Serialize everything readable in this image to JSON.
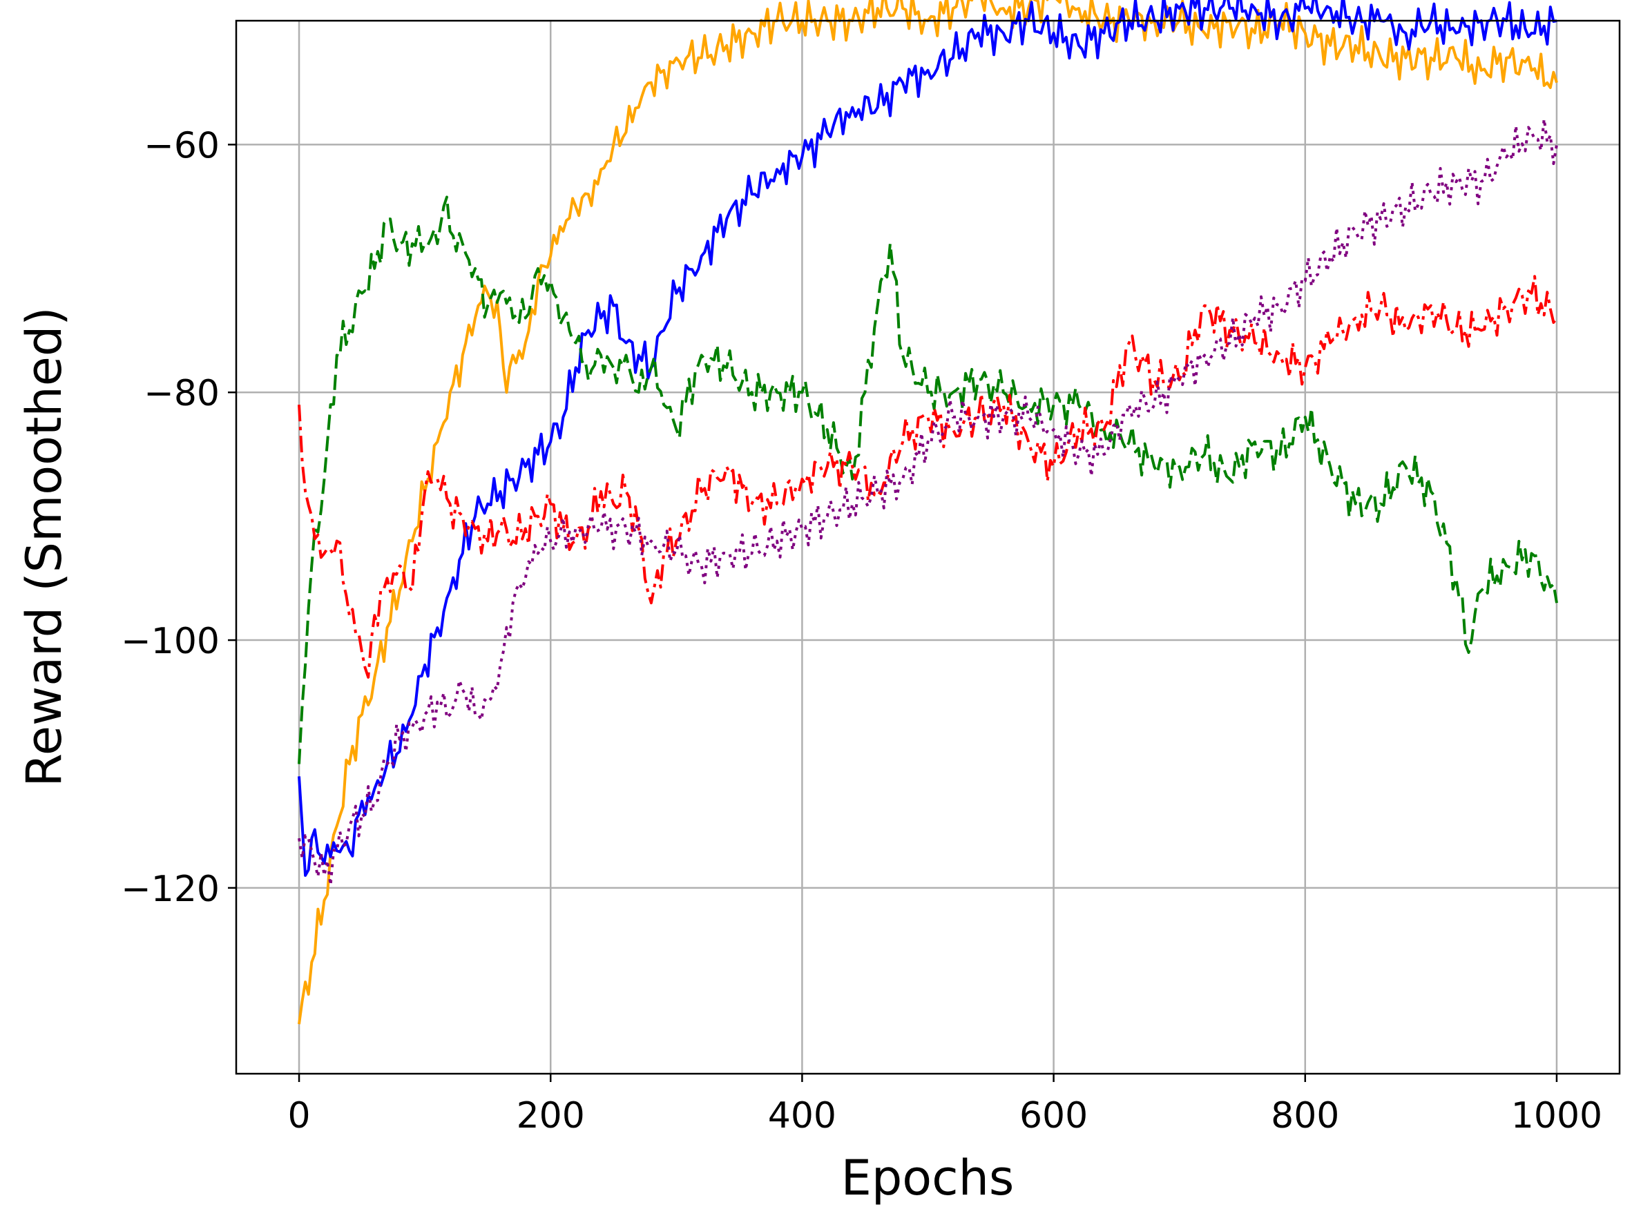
{
  "chart_data": {
    "type": "line",
    "title": "",
    "xlabel": "Epochs",
    "ylabel": "Reward (Smoothed)",
    "xlim": [
      -50,
      1050
    ],
    "ylim": [
      -135,
      -50
    ],
    "x_ticks": [
      0,
      200,
      400,
      600,
      800,
      1000
    ],
    "y_ticks": [
      -120,
      -100,
      -80,
      -60
    ],
    "x_tick_labels": [
      "0",
      "200",
      "400",
      "600",
      "800",
      "1000"
    ],
    "y_tick_labels": [
      "−120",
      "−100",
      "−80",
      "−60"
    ],
    "grid": true,
    "legend": "none",
    "series": [
      {
        "color": "#ffa500",
        "style": "solid",
        "x": [
          0,
          10,
          20,
          30,
          40,
          50,
          60,
          70,
          80,
          90,
          100,
          110,
          120,
          130,
          140,
          150,
          160,
          165,
          170,
          180,
          190,
          200,
          210,
          220,
          230,
          240,
          250,
          260,
          270,
          280,
          290,
          300,
          320,
          340,
          360,
          380,
          400,
          420,
          440,
          460,
          480,
          500,
          520,
          540,
          560,
          580,
          600,
          620,
          640,
          660,
          680,
          700,
          720,
          740,
          760,
          780,
          800,
          820,
          840,
          860,
          880,
          900,
          920,
          940,
          960,
          980,
          1000
        ],
        "y": [
          -131,
          -126,
          -121,
          -115,
          -110,
          -106,
          -103,
          -99,
          -96,
          -92,
          -88,
          -84,
          -80,
          -77,
          -74,
          -72,
          -75,
          -80,
          -77,
          -76,
          -71,
          -69,
          -67,
          -65,
          -64,
          -62,
          -60,
          -59,
          -57,
          -55,
          -54,
          -53,
          -53,
          -52,
          -51,
          -50,
          -50,
          -50,
          -50,
          -49,
          -49,
          -50,
          -49,
          -48,
          -49,
          -49,
          -48,
          -49,
          -50,
          -50,
          -50,
          -50,
          -51,
          -50,
          -51,
          -50,
          -51,
          -52,
          -52,
          -53,
          -53,
          -53,
          -53,
          -54,
          -53,
          -54,
          -55
        ]
      },
      {
        "color": "#0000ff",
        "style": "solid",
        "x": [
          0,
          5,
          10,
          20,
          30,
          40,
          50,
          60,
          70,
          80,
          90,
          100,
          110,
          120,
          130,
          140,
          150,
          160,
          170,
          180,
          190,
          200,
          210,
          220,
          230,
          240,
          250,
          260,
          270,
          280,
          290,
          300,
          320,
          340,
          360,
          380,
          400,
          420,
          440,
          460,
          480,
          500,
          520,
          540,
          560,
          580,
          600,
          620,
          640,
          660,
          680,
          700,
          720,
          740,
          760,
          780,
          800,
          820,
          840,
          860,
          880,
          900,
          920,
          940,
          960,
          980,
          1000
        ],
        "y": [
          -111,
          -119,
          -116,
          -118,
          -117,
          -117,
          -113,
          -112,
          -110,
          -109,
          -106,
          -102,
          -99,
          -96,
          -93,
          -90,
          -89,
          -88,
          -87,
          -86,
          -85,
          -84,
          -82,
          -78,
          -75,
          -74,
          -73,
          -76,
          -77,
          -78,
          -75,
          -72,
          -69,
          -66,
          -64,
          -62,
          -61,
          -59,
          -57,
          -57,
          -55,
          -54,
          -53,
          -51,
          -51,
          -50,
          -51,
          -52,
          -51,
          -50,
          -50,
          -49,
          -49,
          -49,
          -49,
          -50,
          -49,
          -49,
          -50,
          -50,
          -51,
          -50,
          -51,
          -50,
          -50,
          -51,
          -50
        ]
      },
      {
        "color": "#008000",
        "style": "dashed",
        "x": [
          0,
          5,
          10,
          20,
          30,
          40,
          50,
          60,
          70,
          80,
          90,
          100,
          110,
          115,
          120,
          130,
          140,
          150,
          160,
          170,
          180,
          190,
          200,
          210,
          220,
          230,
          240,
          250,
          260,
          270,
          280,
          290,
          300,
          320,
          340,
          360,
          380,
          400,
          420,
          440,
          460,
          470,
          480,
          500,
          520,
          540,
          560,
          580,
          600,
          620,
          640,
          660,
          680,
          700,
          720,
          740,
          760,
          780,
          800,
          820,
          840,
          860,
          880,
          900,
          920,
          930,
          940,
          960,
          980,
          1000
        ],
        "y": [
          -110,
          -102,
          -94,
          -87,
          -77,
          -75,
          -72,
          -70,
          -66,
          -68,
          -68,
          -68,
          -68,
          -65,
          -67,
          -68,
          -70,
          -73,
          -72,
          -74,
          -74,
          -70,
          -71,
          -74,
          -76,
          -79,
          -77,
          -78,
          -77,
          -80,
          -78,
          -81,
          -83,
          -77,
          -78,
          -80,
          -80,
          -80,
          -83,
          -87,
          -73,
          -68,
          -77,
          -80,
          -80,
          -79,
          -80,
          -81,
          -81,
          -81,
          -83,
          -84,
          -86,
          -86,
          -85,
          -87,
          -84,
          -85,
          -82,
          -86,
          -89,
          -89,
          -86,
          -88,
          -95,
          -101,
          -96,
          -94,
          -93,
          -97
        ]
      },
      {
        "color": "#ff0000",
        "style": "dashdot",
        "x": [
          0,
          5,
          10,
          20,
          30,
          40,
          50,
          55,
          60,
          70,
          80,
          90,
          100,
          110,
          120,
          130,
          140,
          150,
          160,
          170,
          180,
          190,
          200,
          210,
          220,
          230,
          240,
          250,
          260,
          270,
          280,
          290,
          300,
          320,
          340,
          360,
          380,
          400,
          420,
          440,
          460,
          480,
          500,
          520,
          540,
          560,
          580,
          600,
          620,
          640,
          660,
          680,
          700,
          720,
          740,
          760,
          780,
          800,
          820,
          840,
          860,
          880,
          900,
          920,
          940,
          960,
          980,
          1000
        ],
        "y": [
          -81,
          -88,
          -90,
          -93,
          -92,
          -98,
          -101,
          -103,
          -98,
          -95,
          -94,
          -96,
          -88,
          -87,
          -89,
          -90,
          -91,
          -92,
          -91,
          -92,
          -91,
          -90,
          -89,
          -91,
          -92,
          -91,
          -88,
          -89,
          -88,
          -91,
          -97,
          -93,
          -92,
          -88,
          -86,
          -89,
          -89,
          -87,
          -86,
          -86,
          -88,
          -84,
          -82,
          -83,
          -82,
          -81,
          -84,
          -86,
          -83,
          -83,
          -76,
          -79,
          -79,
          -73,
          -75,
          -76,
          -77,
          -78,
          -76,
          -74,
          -73,
          -75,
          -73,
          -75,
          -75,
          -73,
          -72,
          -74
        ]
      },
      {
        "color": "#800080",
        "style": "dotted",
        "x": [
          0,
          10,
          20,
          30,
          40,
          50,
          60,
          70,
          80,
          90,
          100,
          110,
          120,
          130,
          140,
          150,
          160,
          170,
          180,
          190,
          200,
          220,
          240,
          260,
          280,
          300,
          320,
          340,
          360,
          380,
          400,
          420,
          440,
          460,
          480,
          500,
          520,
          540,
          560,
          580,
          600,
          620,
          640,
          660,
          680,
          700,
          720,
          740,
          760,
          780,
          800,
          820,
          840,
          860,
          880,
          900,
          920,
          940,
          960,
          980,
          1000
        ],
        "y": [
          -116,
          -117,
          -119,
          -117,
          -115,
          -114,
          -113,
          -110,
          -108,
          -107,
          -106,
          -105,
          -106,
          -104,
          -106,
          -105,
          -102,
          -97,
          -95,
          -93,
          -92,
          -91,
          -91,
          -91,
          -92,
          -93,
          -94,
          -93,
          -93,
          -92,
          -91,
          -90,
          -89,
          -88,
          -87,
          -84,
          -82,
          -82,
          -82,
          -82,
          -83,
          -85,
          -85,
          -81,
          -81,
          -79,
          -77,
          -76,
          -74,
          -73,
          -71,
          -69,
          -67,
          -66,
          -65,
          -64,
          -63,
          -63,
          -61,
          -59,
          -60
        ]
      }
    ]
  }
}
